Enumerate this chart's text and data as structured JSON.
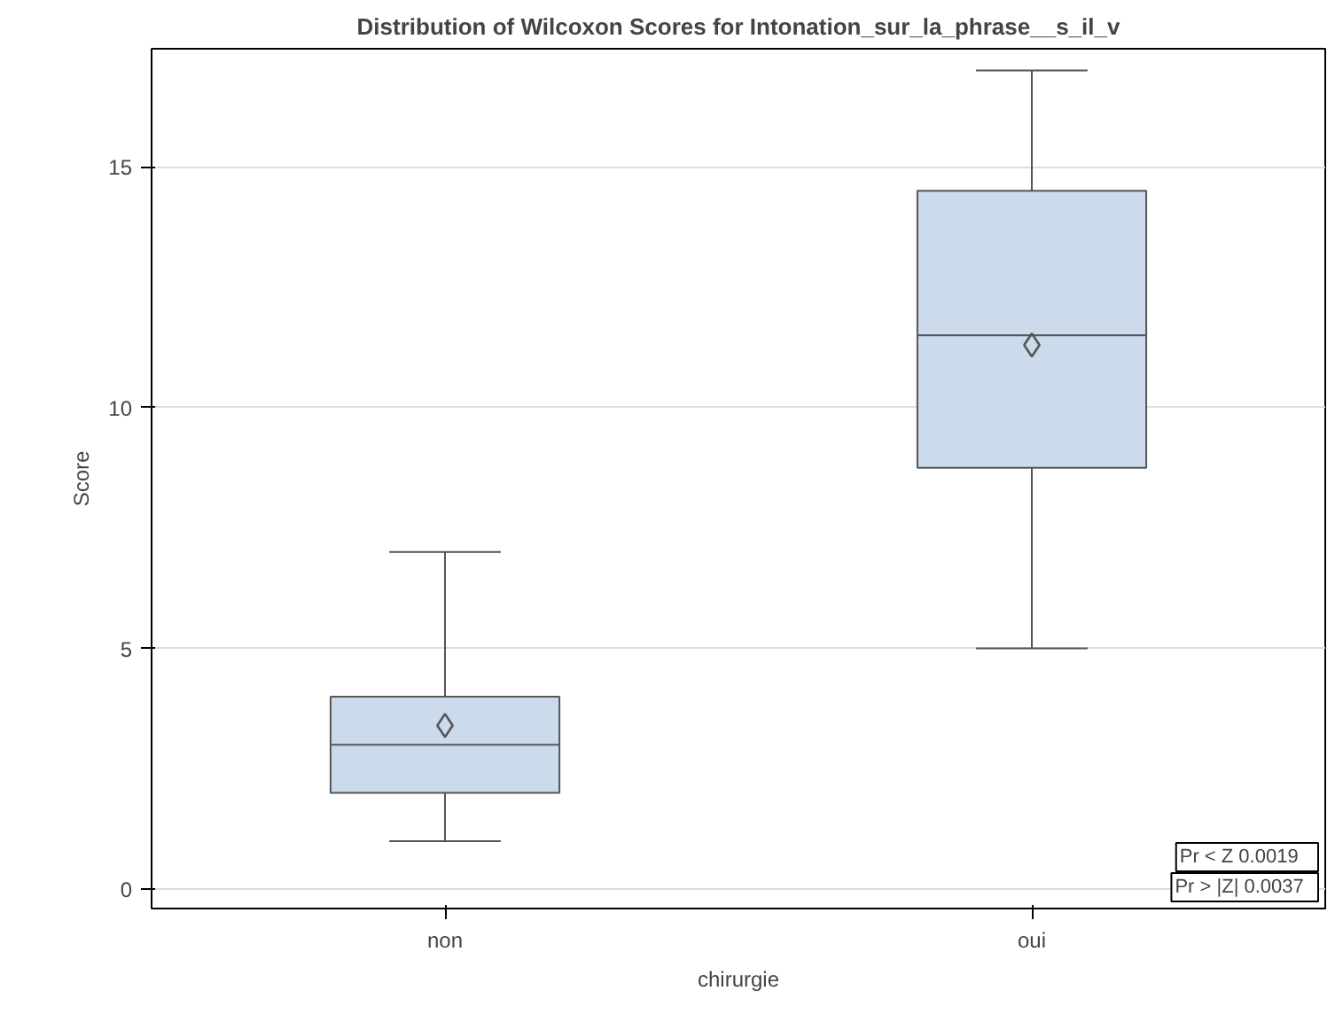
{
  "chart_data": {
    "type": "box",
    "title": "Distribution of Wilcoxon Scores for Intonation_sur_la_phrase__s_il_v",
    "xlabel": "chirurgie",
    "ylabel": "Score",
    "categories": [
      "non",
      "oui"
    ],
    "boxes": [
      {
        "low": 1,
        "q1": 2,
        "median": 3,
        "q3": 4,
        "high": 7,
        "mean": 3.4
      },
      {
        "low": 5,
        "q1": 8.75,
        "median": 11.5,
        "q3": 14.5,
        "high": 17,
        "mean": 11.3
      }
    ],
    "color": "#cbdbec",
    "ylim": [
      -0.4,
      17.45
    ],
    "yticks": [
      0,
      5,
      10,
      15
    ],
    "grid": "y",
    "marker": "diamond",
    "annotations": [
      "Pr < Z    0.0019",
      "Pr > |Z|   0.0037"
    ]
  }
}
